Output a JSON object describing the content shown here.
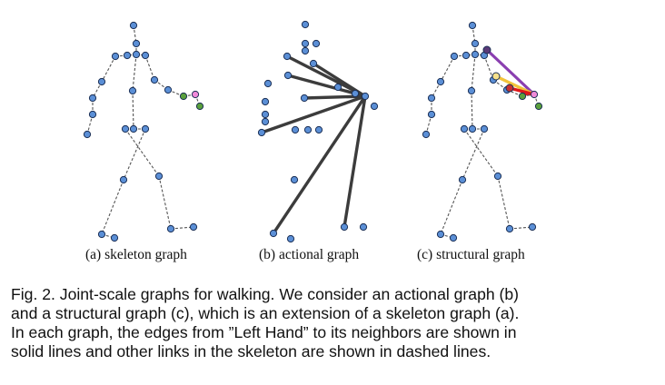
{
  "panels": [
    {
      "id": "a",
      "label": "(a) skeleton graph"
    },
    {
      "id": "b",
      "label": "(b) actional graph"
    },
    {
      "id": "c",
      "label": "(c) structural graph"
    }
  ],
  "caption_lines": [
    "Fig. 2. Joint-scale graphs for walking. We consider an actional graph (b)",
    "and a structural graph (c), which is an extension of a skeleton graph (a).",
    "In each graph, the edges from ”Left Hand” to its neighbors are shown in",
    "solid lines and other links in the skeleton are shown in dashed lines."
  ],
  "colors": {
    "joint_fill": "#5b8fd6",
    "joint_stroke": "#1b2f55",
    "dashed_line": "#555555",
    "actional_edge": "#3c3c3c",
    "left_hand_pink": "#f08ad8",
    "green_joint": "#5aa03c",
    "purple_edge": "#8a3fb0",
    "yellow_edge": "#f2c33a",
    "red_edge": "#e0181a"
  }
}
